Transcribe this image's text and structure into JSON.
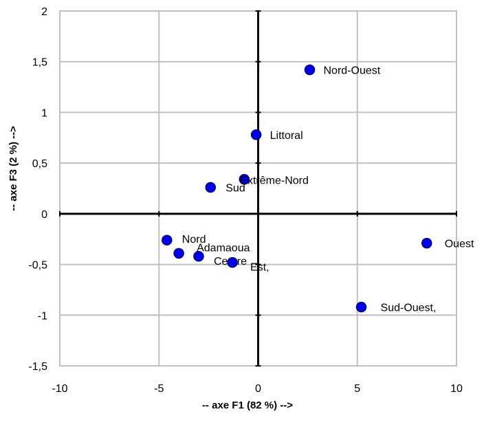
{
  "chart_data": {
    "type": "scatter",
    "title": "",
    "xlabel": "-- axe F1 (82 %) -->",
    "ylabel": "-- axe F3 (2 %) -->",
    "xlim": [
      -10,
      10
    ],
    "ylim": [
      -1.5,
      2
    ],
    "x_ticks": [
      -10,
      -5,
      0,
      5,
      10
    ],
    "y_ticks": [
      -1.5,
      -1,
      -0.5,
      0,
      0.5,
      1,
      1.5,
      2
    ],
    "x_tick_labels": [
      "-10",
      "-5",
      "0",
      "5",
      "10"
    ],
    "y_tick_labels": [
      "-1,5",
      "-1",
      "-0,5",
      "0",
      "0,5",
      "1",
      "1,5",
      "2"
    ],
    "grid": true,
    "point_color": "#0000ee",
    "points": [
      {
        "label": "Nord-Ouest",
        "x": 2.6,
        "y": 1.42
      },
      {
        "label": "Littoral",
        "x": -0.1,
        "y": 0.78
      },
      {
        "label": "Extrême-Nord",
        "x": -0.7,
        "y": 0.34
      },
      {
        "label": "Sud",
        "x": -2.4,
        "y": 0.26
      },
      {
        "label": "Nord",
        "x": -4.6,
        "y": -0.26
      },
      {
        "label": "Adamaoua",
        "x": -4.0,
        "y": -0.39
      },
      {
        "label": "Centre",
        "x": -3.0,
        "y": -0.42
      },
      {
        "label": "Est,",
        "x": -1.3,
        "y": -0.48
      },
      {
        "label": "Ouest",
        "x": 8.5,
        "y": -0.29
      },
      {
        "label": "Sud-Ouest,",
        "x": 5.2,
        "y": -0.92
      }
    ]
  }
}
